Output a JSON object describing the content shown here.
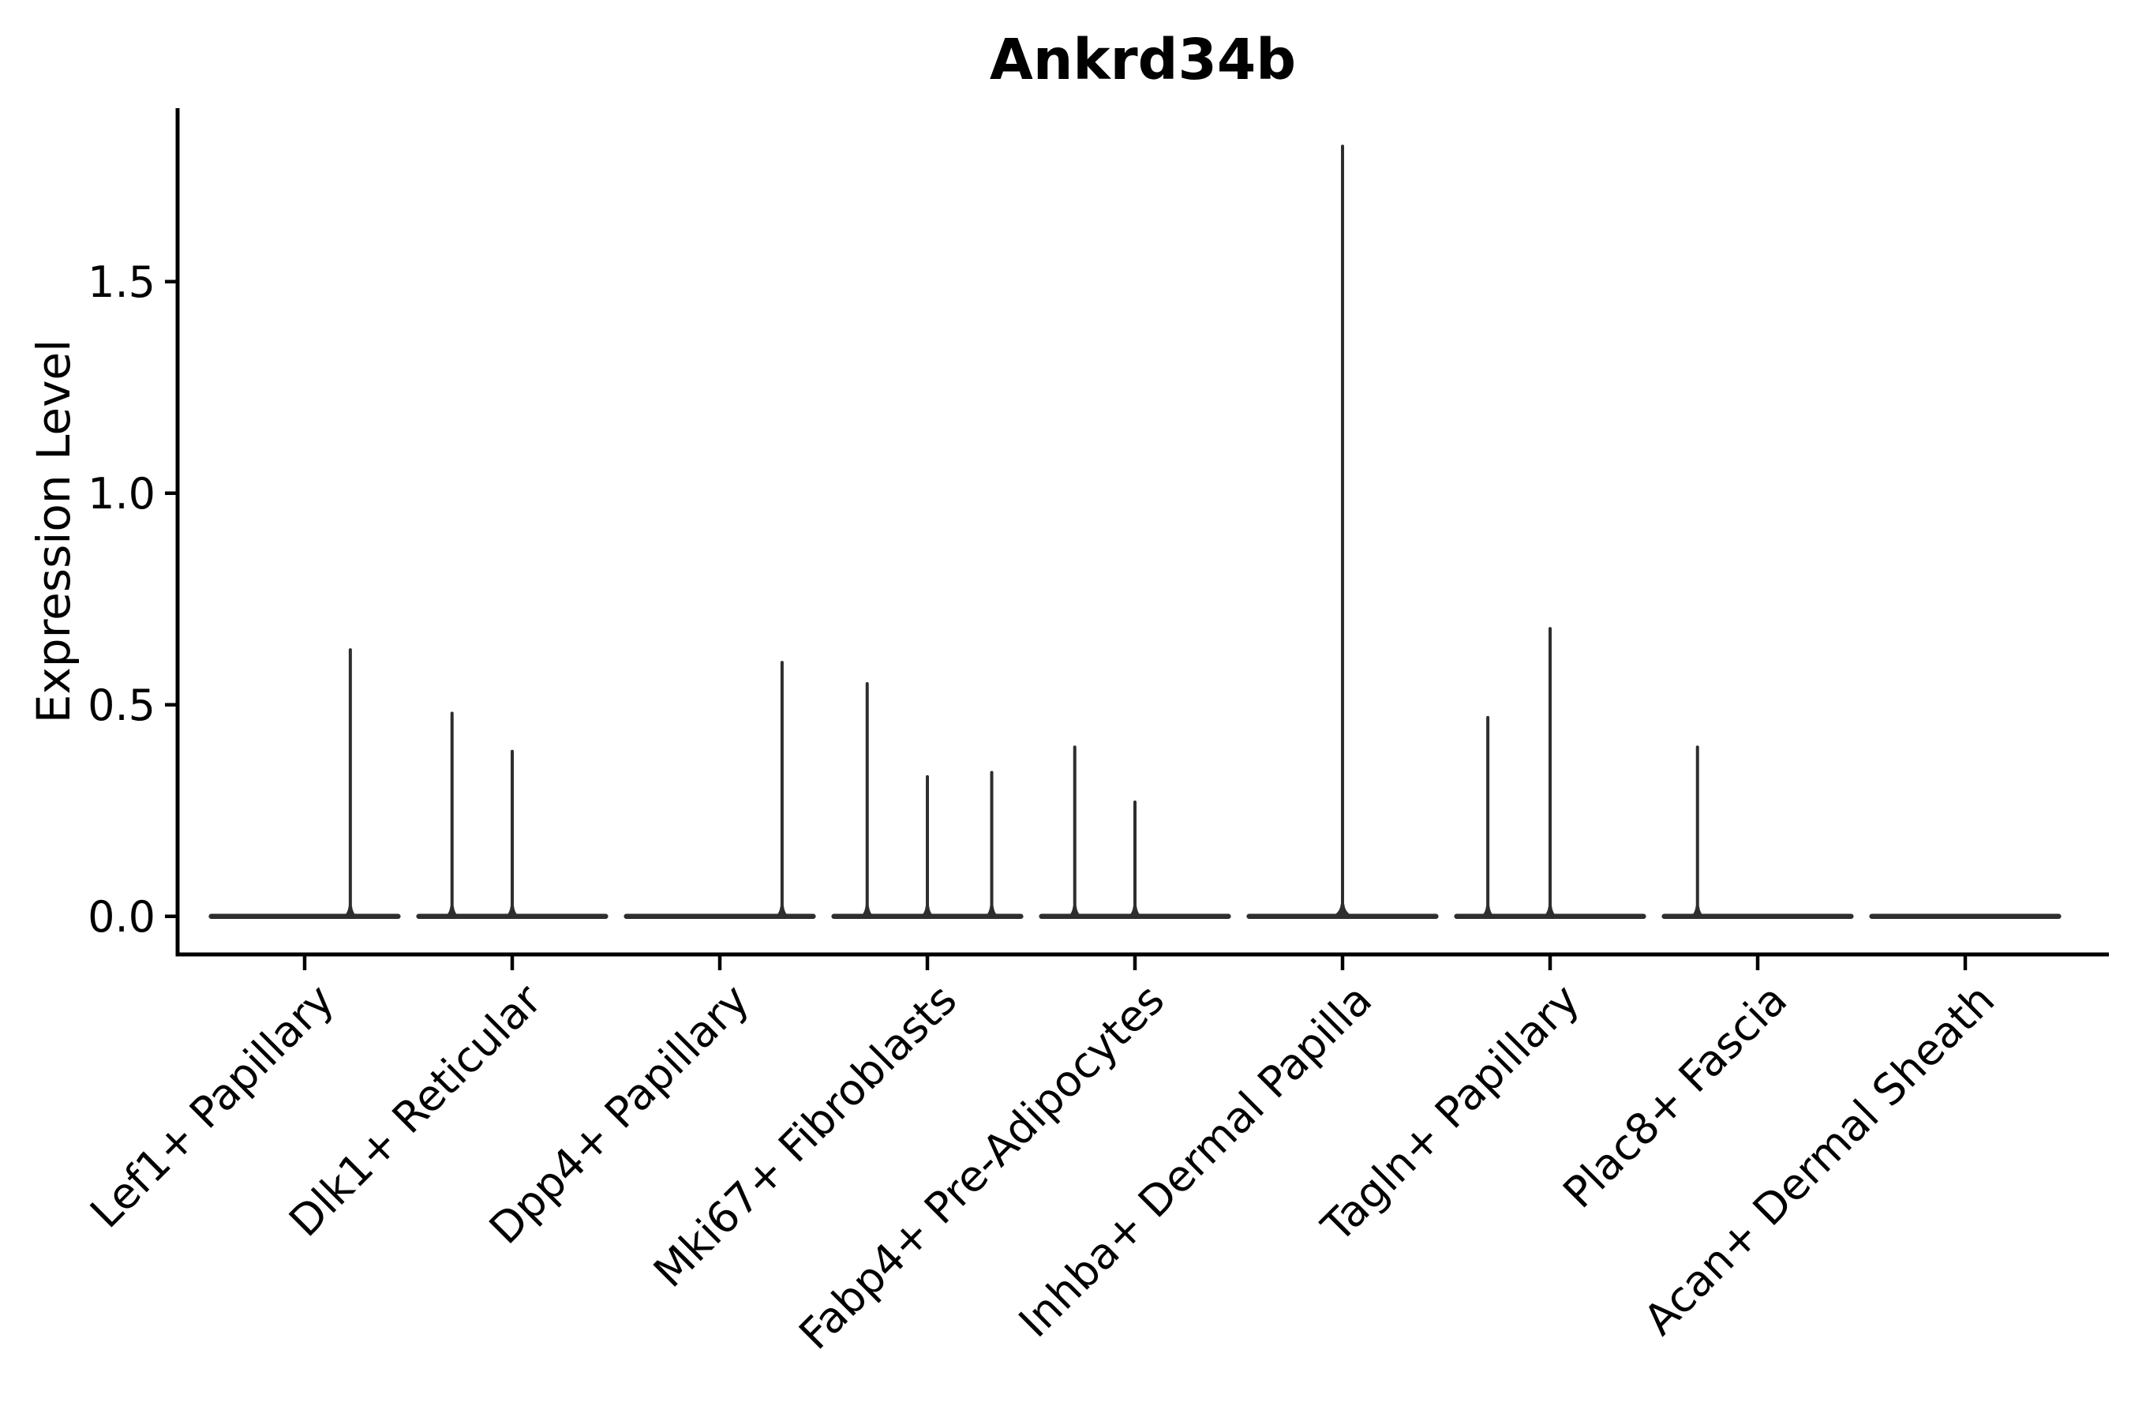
{
  "title": "Ankrd34b",
  "axes": {
    "ylabel": "Expression Level",
    "xlabel": "",
    "ytick_labels": [
      "0.0",
      "0.5",
      "1.0",
      "1.5"
    ]
  },
  "colors": {
    "violin": "#2e2e2e",
    "axis": "#000000",
    "text": "#000000",
    "background": "#ffffff"
  },
  "chart_data": {
    "type": "violin",
    "title": "Ankrd34b",
    "xlabel": "",
    "ylabel": "Expression Level",
    "categories": [
      "Lef1+ Papillary",
      "Dlk1+ Reticular",
      "Dpp4+ Papillary",
      "Mki67+ Fibroblasts",
      "Fabp4+ Pre-Adipocytes",
      "Inhba+ Dermal Papilla",
      "Tagln+ Papillary",
      "Plac8+ Fascia",
      "Acan+ Dermal Sheath"
    ],
    "yticks": [
      0.0,
      0.5,
      1.0,
      1.5
    ],
    "ylim": [
      -0.09,
      1.91
    ],
    "grid": false,
    "legend": null,
    "violin_base_halfwidth": 0.45,
    "series": [
      {
        "category": "Lef1+ Papillary",
        "spikes": [
          {
            "offset": 0.22,
            "height": 0.63
          }
        ]
      },
      {
        "category": "Dlk1+ Reticular",
        "spikes": [
          {
            "offset": -0.29,
            "height": 0.48
          },
          {
            "offset": 0.0,
            "height": 0.39
          }
        ]
      },
      {
        "category": "Dpp4+ Papillary",
        "spikes": [
          {
            "offset": 0.3,
            "height": 0.6
          }
        ]
      },
      {
        "category": "Mki67+ Fibroblasts",
        "spikes": [
          {
            "offset": -0.29,
            "height": 0.55
          },
          {
            "offset": 0.0,
            "height": 0.33
          },
          {
            "offset": 0.31,
            "height": 0.34
          }
        ]
      },
      {
        "category": "Fabp4+ Pre-Adipocytes",
        "spikes": [
          {
            "offset": -0.29,
            "height": 0.4
          },
          {
            "offset": 0.0,
            "height": 0.27
          }
        ]
      },
      {
        "category": "Inhba+ Dermal Papilla",
        "spikes": [
          {
            "offset": 0.0,
            "height": 1.82
          }
        ]
      },
      {
        "category": "Tagln+ Papillary",
        "spikes": [
          {
            "offset": -0.3,
            "height": 0.47
          },
          {
            "offset": 0.0,
            "height": 0.68
          }
        ]
      },
      {
        "category": "Plac8+ Fascia",
        "spikes": [
          {
            "offset": -0.29,
            "height": 0.4
          }
        ]
      },
      {
        "category": "Acan+ Dermal Sheath",
        "spikes": []
      }
    ]
  }
}
